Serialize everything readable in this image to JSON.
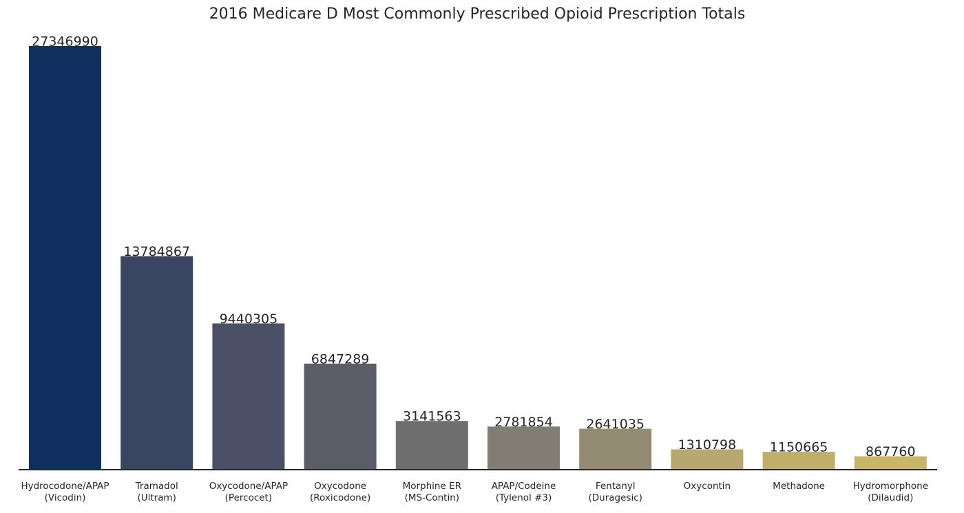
{
  "chart_data": {
    "type": "bar",
    "title": "2016 Medicare D Most Commonly Prescribed Opioid Prescription Totals",
    "xlabel": "",
    "ylabel": "",
    "categories": [
      [
        "Hydrocodone/APAP",
        "(Vicodin)"
      ],
      [
        "Tramadol",
        "(Ultram)"
      ],
      [
        "Oxycodone/APAP",
        "(Percocet)"
      ],
      [
        "Oxycodone",
        "(Roxicodone)"
      ],
      [
        "Morphine ER",
        "(MS-Contin)"
      ],
      [
        "APAP/Codeine",
        "(Tylenol #3)"
      ],
      [
        "Fentanyl",
        "(Duragesic)"
      ],
      [
        "Oxycontin"
      ],
      [
        "Methadone"
      ],
      [
        "Hydromorphone",
        "(Dilaudid)"
      ]
    ],
    "values": [
      27346990,
      13784867,
      9440305,
      6847289,
      3141563,
      2781854,
      2641035,
      1310798,
      1150665,
      867760
    ],
    "data_labels": [
      "27346990",
      "13784867",
      "9440305",
      "6847289",
      "3141563",
      "2781854",
      "2641035",
      "1310798",
      "1150665",
      "867760"
    ],
    "colors": [
      "#10305f",
      "#3a4562",
      "#4b5066",
      "#5b5d69",
      "#6e6e6f",
      "#817d72",
      "#938c72",
      "#b8a76e",
      "#c0ae6a",
      "#c9b567"
    ],
    "ylim": [
      0,
      27346990
    ],
    "grid": false,
    "legend": "none",
    "axis_color": "#262626",
    "text_color": "#262626"
  }
}
